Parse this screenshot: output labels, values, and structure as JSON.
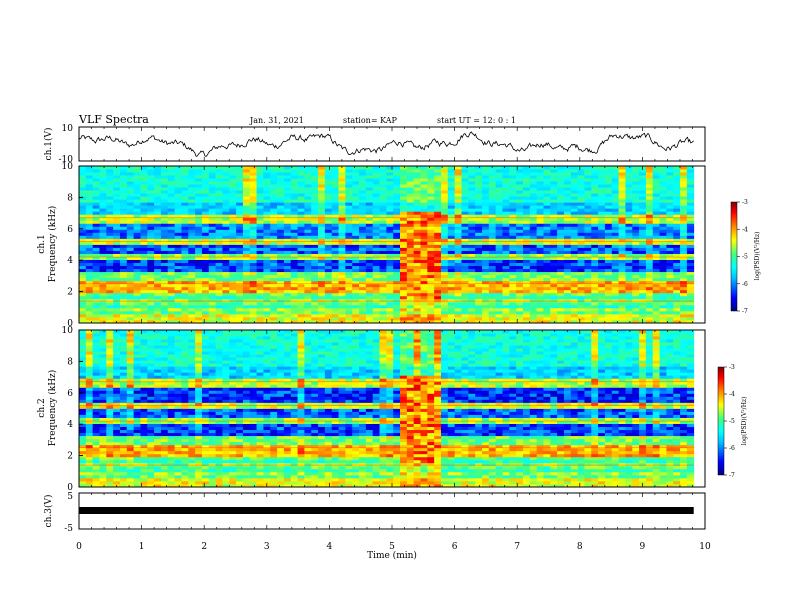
{
  "header": {
    "title": "VLF Spectra",
    "date": "Jan. 31, 2021",
    "station": "station= KAP",
    "start": "start  UT =   12: 0  : 1"
  },
  "chart_data": {
    "type": "heatmap",
    "xlabel": "Time  (min)",
    "xlim": [
      0,
      10
    ],
    "xticks": [
      "0",
      "1",
      "2",
      "3",
      "4",
      "5",
      "6",
      "7",
      "8",
      "9",
      "10"
    ],
    "panels": [
      {
        "id": "ch1-waveform",
        "type": "line",
        "ylabel": "ch.1(V)",
        "ylim": [
          -10,
          10
        ],
        "yticks": [
          "10",
          "-10"
        ]
      },
      {
        "id": "ch1-spectrogram",
        "type": "heatmap",
        "ylabel_top": "ch.1",
        "ylabel": "Frequency  (kHz)",
        "ylim": [
          0,
          10
        ],
        "yticks": [
          "10",
          "8",
          "6",
          "4",
          "2",
          "0"
        ],
        "colorbar": {
          "label": "log(PSD)(V²/Hz)",
          "ticks": [
            "-3",
            "-4",
            "-5",
            "-6",
            "-7"
          ],
          "range": [
            -7,
            -3
          ]
        },
        "burst_interval_min": [
          5.15,
          5.75
        ]
      },
      {
        "id": "ch2-spectrogram",
        "type": "heatmap",
        "ylabel_top": "ch.2",
        "ylabel": "Frequency  (kHz)",
        "ylim": [
          0,
          10
        ],
        "yticks": [
          "10",
          "8",
          "6",
          "4",
          "2",
          "0"
        ],
        "colorbar": {
          "label": "log(PSD)(V²/Hz)",
          "ticks": [
            "-3",
            "-4",
            "-5",
            "-6",
            "-7"
          ],
          "range": [
            -7,
            -3
          ]
        },
        "burst_interval_min": [
          5.15,
          5.75
        ]
      },
      {
        "id": "ch3-waveform",
        "type": "line",
        "ylabel": "ch.3(V)",
        "ylim": [
          -5,
          5
        ],
        "yticks": [
          "5",
          "-5"
        ]
      }
    ]
  },
  "colors": {
    "colormap": [
      "#00007f",
      "#0000ff",
      "#00bfff",
      "#00ffff",
      "#40ff80",
      "#ffff00",
      "#ff8000",
      "#ff0000",
      "#7f0000"
    ]
  }
}
